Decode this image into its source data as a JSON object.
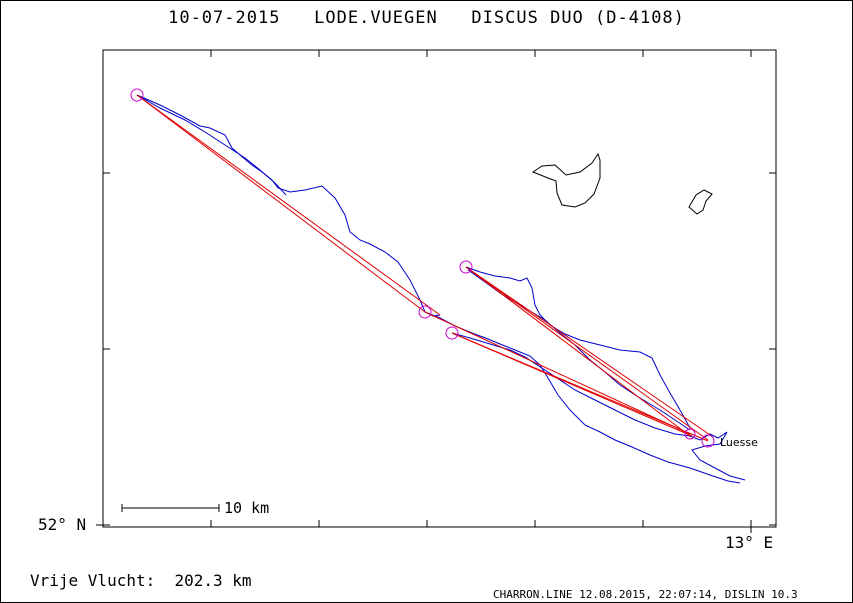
{
  "title": "10-07-2015   LODE.VUEGEN   DISCUS DUO (D-4108)",
  "axes": {
    "lat_label": "52° N",
    "lon_label": "13° E"
  },
  "scale_bar": {
    "label": "10 km"
  },
  "place": {
    "name": "Luesse"
  },
  "distance": {
    "text": "Vrije Vlucht:  202.3 km"
  },
  "footer": {
    "text": "CHARRON.LINE 12.08.2015, 22:07:14, DISLIN 10.3"
  },
  "colors": {
    "track": "#0000cc",
    "task_line": "#e00000",
    "turnpoint": "#cc00cc",
    "frame": "#000000"
  }
}
